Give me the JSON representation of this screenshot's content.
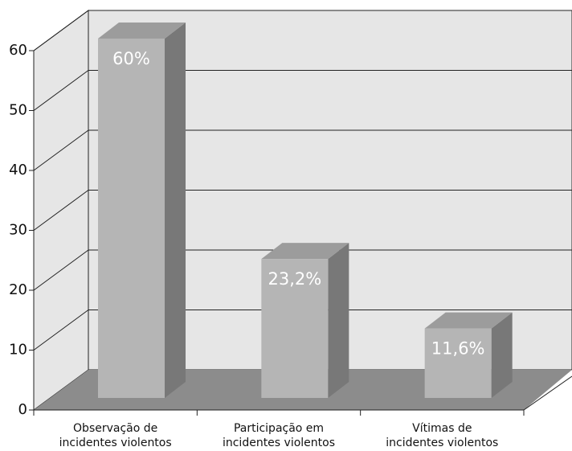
{
  "chart_data": {
    "type": "bar3d",
    "categories": [
      "Observação de\nincidentes violentos",
      "Participação em\nincidentes violentos",
      "Vítimas de\nincidentes violentos"
    ],
    "values": [
      60,
      23.2,
      11.6
    ],
    "value_labels": [
      "60%",
      "23,2%",
      "11,6%"
    ],
    "color": "#b5b5b5",
    "ylim": [
      0,
      60
    ],
    "yticks": [
      0,
      10,
      20,
      30,
      40,
      50,
      60
    ],
    "grid": true
  }
}
